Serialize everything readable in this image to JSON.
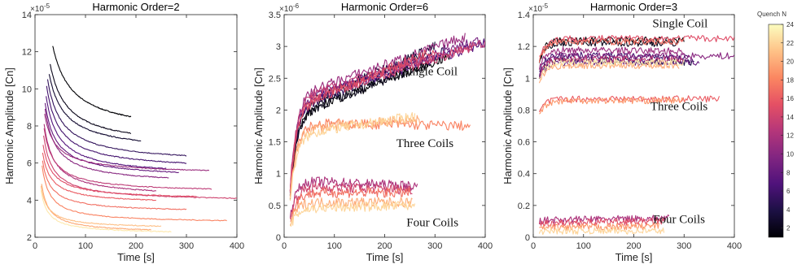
{
  "chart_data": [
    {
      "type": "line",
      "title": "Harmonic Order=2",
      "xlabel": "Time [s]",
      "ylabel": "Harmonic Amplitude [Cn]",
      "y_exponent": "×10",
      "y_exponent_power": "-5",
      "xlim": [
        0,
        400
      ],
      "ylim": [
        2,
        14
      ],
      "xticks": [
        0,
        100,
        200,
        300,
        400
      ],
      "yticks": [
        2,
        4,
        6,
        8,
        10,
        12,
        14
      ],
      "annotations": [],
      "series": [
        {
          "quench": 24,
          "x": [
            35,
            190
          ],
          "y": [
            13.4,
            8.5
          ]
        },
        {
          "quench": 23,
          "x": [
            30,
            190
          ],
          "y": [
            12.2,
            7.6
          ]
        },
        {
          "quench": 22,
          "x": [
            28,
            210
          ],
          "y": [
            11.5,
            7.2
          ]
        },
        {
          "quench": 20,
          "x": [
            25,
            300
          ],
          "y": [
            11.0,
            6.4
          ]
        },
        {
          "quench": 19,
          "x": [
            23,
            300
          ],
          "y": [
            10.6,
            6.0
          ]
        },
        {
          "quench": 18,
          "x": [
            22,
            260
          ],
          "y": [
            10.1,
            5.7
          ]
        },
        {
          "quench": 17,
          "x": [
            20,
            285
          ],
          "y": [
            9.6,
            5.5
          ]
        },
        {
          "quench": 15,
          "x": [
            20,
            265
          ],
          "y": [
            9.3,
            5.2
          ]
        },
        {
          "quench": 14,
          "x": [
            19,
            345
          ],
          "y": [
            8.9,
            5.6
          ]
        },
        {
          "quench": 13,
          "x": [
            18,
            240
          ],
          "y": [
            8.5,
            4.5
          ]
        },
        {
          "quench": 12,
          "x": [
            18,
            350
          ],
          "y": [
            8.1,
            4.6
          ]
        },
        {
          "quench": 11,
          "x": [
            17,
            400
          ],
          "y": [
            7.7,
            4.1
          ]
        },
        {
          "quench": 10,
          "x": [
            16,
            320
          ],
          "y": [
            7.2,
            4.2
          ]
        },
        {
          "quench": 9,
          "x": [
            15,
            240
          ],
          "y": [
            6.8,
            4.0
          ]
        },
        {
          "quench": 8,
          "x": [
            15,
            300
          ],
          "y": [
            6.3,
            3.5
          ]
        },
        {
          "quench": 7,
          "x": [
            14,
            380
          ],
          "y": [
            6.0,
            2.9
          ]
        },
        {
          "quench": 5,
          "x": [
            13,
            230
          ],
          "y": [
            5.1,
            2.4
          ]
        },
        {
          "quench": 4,
          "x": [
            12,
            250
          ],
          "y": [
            4.9,
            2.6
          ]
        },
        {
          "quench": 2,
          "x": [
            12,
            270
          ],
          "y": [
            4.7,
            2.3
          ]
        }
      ]
    },
    {
      "type": "line",
      "title": "Harmonic Order=6",
      "xlabel": "Time [s]",
      "ylabel": "Harmonic Amplitude [Cn]",
      "y_exponent": "×10",
      "y_exponent_power": "-6",
      "xlim": [
        0,
        400
      ],
      "ylim": [
        0,
        3.5
      ],
      "xticks": [
        0,
        100,
        200,
        300,
        400
      ],
      "yticks": [
        0,
        0.5,
        1,
        1.5,
        2,
        2.5,
        3,
        3.5
      ],
      "annotations": [
        {
          "text": "Single Coil",
          "x": 290,
          "y": 2.55
        },
        {
          "text": "Three Coils",
          "x": 280,
          "y": 1.42
        },
        {
          "text": "Four Coils",
          "x": 295,
          "y": 0.17
        }
      ],
      "series": [
        {
          "quench": 24,
          "x": [
            12,
            330
          ],
          "y": [
            1.9,
            2.85
          ]
        },
        {
          "quench": 23,
          "x": [
            12,
            290
          ],
          "y": [
            1.9,
            2.75
          ]
        },
        {
          "quench": 22,
          "x": [
            12,
            300
          ],
          "y": [
            2.0,
            3.0
          ]
        },
        {
          "quench": 20,
          "x": [
            12,
            320
          ],
          "y": [
            2.0,
            2.95
          ]
        },
        {
          "quench": 18,
          "x": [
            12,
            400
          ],
          "y": [
            2.1,
            3.05
          ]
        },
        {
          "quench": 16,
          "x": [
            12,
            390
          ],
          "y": [
            2.1,
            3.1
          ]
        },
        {
          "quench": 14,
          "x": [
            12,
            360
          ],
          "y": [
            2.2,
            3.15
          ]
        },
        {
          "quench": 12,
          "x": [
            12,
            400
          ],
          "y": [
            2.2,
            3.05
          ]
        },
        {
          "quench": 11,
          "x": [
            12,
            380
          ],
          "y": [
            2.1,
            3.0
          ]
        },
        {
          "quench": 10,
          "x": [
            12,
            300
          ],
          "y": [
            2.0,
            2.95
          ]
        },
        {
          "quench": 7,
          "x": [
            12,
            370
          ],
          "y": [
            1.8,
            1.75
          ]
        },
        {
          "quench": 5,
          "x": [
            12,
            270
          ],
          "y": [
            1.7,
            1.85
          ]
        },
        {
          "quench": 3,
          "x": [
            12,
            260
          ],
          "y": [
            1.6,
            1.9
          ]
        },
        {
          "quench": 13,
          "x": [
            12,
            265
          ],
          "y": [
            0.9,
            0.8
          ]
        },
        {
          "quench": 11,
          "x": [
            12,
            255
          ],
          "y": [
            0.8,
            0.75
          ]
        },
        {
          "quench": 8,
          "x": [
            12,
            250
          ],
          "y": [
            0.7,
            0.7
          ]
        },
        {
          "quench": 5,
          "x": [
            12,
            255
          ],
          "y": [
            0.55,
            0.55
          ]
        },
        {
          "quench": 3,
          "x": [
            12,
            260
          ],
          "y": [
            0.45,
            0.5
          ]
        }
      ]
    },
    {
      "type": "line",
      "title": "Harmonic Order=3",
      "xlabel": "Time [s]",
      "ylabel": "Harmonic Amplitude [Cn]",
      "y_exponent": "×10",
      "y_exponent_power": "-5",
      "xlim": [
        0,
        400
      ],
      "ylim": [
        0,
        1.4
      ],
      "xticks": [
        0,
        100,
        200,
        300,
        400
      ],
      "yticks": [
        0,
        0.2,
        0.4,
        0.6,
        0.8,
        1,
        1.2,
        1.4
      ],
      "annotations": [
        {
          "text": "Single Coil",
          "x": 292,
          "y": 1.32
        },
        {
          "text": "Three Coils",
          "x": 290,
          "y": 0.8
        },
        {
          "text": "Four Coils",
          "x": 290,
          "y": 0.09
        }
      ],
      "series": [
        {
          "quench": 24,
          "x": [
            12,
            300
          ],
          "y": [
            1.24,
            1.24
          ]
        },
        {
          "quench": 23,
          "x": [
            12,
            290
          ],
          "y": [
            1.22,
            1.22
          ]
        },
        {
          "quench": 21,
          "x": [
            12,
            320
          ],
          "y": [
            1.12,
            1.1
          ]
        },
        {
          "quench": 19,
          "x": [
            12,
            310
          ],
          "y": [
            1.15,
            1.13
          ]
        },
        {
          "quench": 17,
          "x": [
            12,
            330
          ],
          "y": [
            1.1,
            1.1
          ]
        },
        {
          "quench": 15,
          "x": [
            12,
            400
          ],
          "y": [
            1.14,
            1.14
          ]
        },
        {
          "quench": 14,
          "x": [
            12,
            300
          ],
          "y": [
            1.18,
            1.17
          ]
        },
        {
          "quench": 12,
          "x": [
            12,
            300
          ],
          "y": [
            1.12,
            1.12
          ]
        },
        {
          "quench": 10,
          "x": [
            12,
            400
          ],
          "y": [
            1.25,
            1.25
          ]
        },
        {
          "quench": 8,
          "x": [
            12,
            300
          ],
          "y": [
            1.23,
            1.23
          ]
        },
        {
          "quench": 5,
          "x": [
            12,
            290
          ],
          "y": [
            1.08,
            1.08
          ]
        },
        {
          "quench": 2,
          "x": [
            12,
            300
          ],
          "y": [
            1.1,
            1.1
          ]
        },
        {
          "quench": 9,
          "x": [
            12,
            370
          ],
          "y": [
            0.87,
            0.87
          ]
        },
        {
          "quench": 6,
          "x": [
            12,
            300
          ],
          "y": [
            0.86,
            0.86
          ]
        },
        {
          "quench": 13,
          "x": [
            12,
            270
          ],
          "y": [
            0.11,
            0.12
          ]
        },
        {
          "quench": 10,
          "x": [
            12,
            260
          ],
          "y": [
            0.09,
            0.1
          ]
        },
        {
          "quench": 6,
          "x": [
            12,
            250
          ],
          "y": [
            0.06,
            0.07
          ]
        },
        {
          "quench": 3,
          "x": [
            12,
            260
          ],
          "y": [
            0.04,
            0.04
          ]
        }
      ]
    }
  ],
  "colorbar": {
    "title": "Quench N",
    "range": [
      1,
      24
    ],
    "ticks": [
      2,
      4,
      6,
      8,
      10,
      12,
      14,
      16,
      18,
      20,
      22,
      24
    ],
    "colormap": [
      "#000004",
      "#1c1044",
      "#4f127b",
      "#812581",
      "#b5367a",
      "#e55064",
      "#fb8761",
      "#fec287",
      "#fcfdbf"
    ]
  }
}
